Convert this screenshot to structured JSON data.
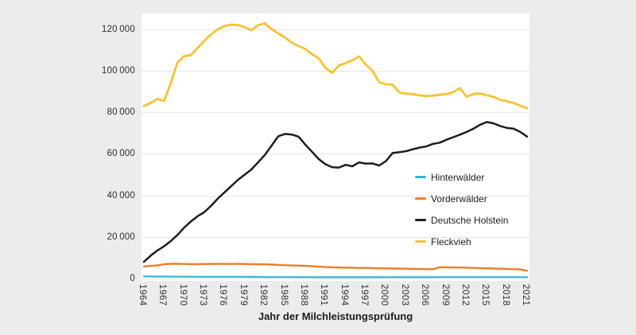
{
  "figure": {
    "background_color": "#ECECEC",
    "plot_background_color": "#FFFFFF",
    "gridline_color": "#E4E4E4",
    "text_color": "#2E2E2E"
  },
  "x_axis": {
    "title": "Jahr der Milchleistungsprüfung",
    "tick_labels": [
      "1964",
      "1967",
      "1970",
      "1973",
      "1976",
      "1979",
      "1982",
      "1985",
      "1988",
      "1991",
      "1994",
      "1997",
      "2000",
      "2003",
      "2006",
      "2009",
      "2012",
      "2015",
      "2018",
      "2021"
    ],
    "tick_values": [
      1964,
      1967,
      1970,
      1973,
      1976,
      1979,
      1982,
      1985,
      1988,
      1991,
      1994,
      1997,
      2000,
      2003,
      2006,
      2009,
      2012,
      2015,
      2018,
      2021
    ]
  },
  "y_axis": {
    "title": "",
    "tick_labels": [
      "0",
      "20 000",
      "40 000",
      "60 000",
      "80 000",
      "100 000",
      "120 000"
    ],
    "tick_values": [
      0,
      20000,
      40000,
      60000,
      80000,
      100000,
      120000
    ]
  },
  "legend": {
    "position": "inside-right",
    "items": [
      "Hinterwälder",
      "Vorderwälder",
      "Deutsche Holstein",
      "Fleckvieh"
    ]
  },
  "chart_data": {
    "type": "line",
    "title": "",
    "xlabel": "Jahr der Milchleistungsprüfung",
    "ylabel": "",
    "xlim": [
      1964,
      2021
    ],
    "ylim": [
      0,
      128000
    ],
    "grid": "horizontal-only",
    "legend_position": "inside-right",
    "x": [
      1964,
      1965,
      1966,
      1967,
      1968,
      1969,
      1970,
      1971,
      1972,
      1973,
      1974,
      1975,
      1976,
      1977,
      1978,
      1979,
      1980,
      1981,
      1982,
      1983,
      1984,
      1985,
      1986,
      1987,
      1988,
      1989,
      1990,
      1991,
      1992,
      1993,
      1994,
      1995,
      1996,
      1997,
      1998,
      1999,
      2000,
      2001,
      2002,
      2003,
      2004,
      2005,
      2006,
      2007,
      2008,
      2009,
      2010,
      2011,
      2012,
      2013,
      2014,
      2015,
      2016,
      2017,
      2018,
      2019,
      2020,
      2021
    ],
    "series": [
      {
        "name": "Hinterwälder",
        "color": "#2FB7CD",
        "stroke_width": 2.2,
        "values": [
          1000,
          1000,
          950,
          950,
          900,
          900,
          900,
          850,
          850,
          800,
          800,
          800,
          800,
          800,
          800,
          750,
          750,
          750,
          700,
          700,
          700,
          700,
          700,
          650,
          650,
          650,
          600,
          600,
          600,
          600,
          600,
          600,
          600,
          600,
          600,
          600,
          650,
          650,
          650,
          650,
          650,
          650,
          650,
          650,
          700,
          700,
          700,
          700,
          700,
          700,
          700,
          700,
          700,
          700,
          700,
          700,
          650,
          650
        ]
      },
      {
        "name": "Vorderwälder",
        "color": "#EF7D24",
        "stroke_width": 2.4,
        "values": [
          5800,
          6100,
          6300,
          6900,
          7100,
          7100,
          7000,
          6900,
          6900,
          7000,
          7000,
          7100,
          7000,
          7000,
          7100,
          7000,
          6900,
          6800,
          6800,
          6700,
          6500,
          6400,
          6300,
          6200,
          6100,
          5900,
          5700,
          5500,
          5400,
          5300,
          5200,
          5200,
          5100,
          5100,
          5000,
          4900,
          4900,
          4800,
          4800,
          4700,
          4600,
          4600,
          4500,
          4500,
          5400,
          5400,
          5300,
          5300,
          5200,
          5100,
          5000,
          4900,
          4800,
          4700,
          4600,
          4500,
          4400,
          3700
        ]
      },
      {
        "name": "Deutsche Holstein",
        "color": "#1D1D1B",
        "stroke_width": 2.5,
        "values": [
          8000,
          11000,
          13500,
          15500,
          18000,
          21000,
          24500,
          27500,
          30000,
          32000,
          35000,
          38500,
          41500,
          44500,
          47500,
          50000,
          52500,
          56000,
          59500,
          64000,
          68500,
          69600,
          69300,
          68300,
          64500,
          61000,
          57500,
          55000,
          53600,
          53400,
          54700,
          54000,
          55900,
          55300,
          55400,
          54400,
          56500,
          60400,
          60800,
          61300,
          62200,
          63000,
          63600,
          64800,
          65400,
          66800,
          68000,
          69200,
          70500,
          72100,
          74000,
          75300,
          74700,
          73400,
          72500,
          72100,
          70500,
          68300
        ]
      },
      {
        "name": "Fleckvieh",
        "color": "#FCC22D",
        "stroke_width": 2.8,
        "values": [
          83000,
          84500,
          86500,
          85500,
          94000,
          104000,
          107000,
          107500,
          111000,
          114500,
          117500,
          120000,
          121500,
          122200,
          122000,
          121000,
          119500,
          122000,
          122800,
          120000,
          118000,
          116000,
          113500,
          112000,
          110500,
          108000,
          106000,
          101500,
          99000,
          102500,
          103700,
          105000,
          106900,
          103000,
          100000,
          94500,
          93500,
          93300,
          89600,
          89000,
          88800,
          88200,
          87800,
          88000,
          88400,
          88800,
          89600,
          91700,
          87500,
          88800,
          89100,
          88200,
          87400,
          86000,
          85300,
          84500,
          83200,
          82000
        ]
      }
    ]
  }
}
